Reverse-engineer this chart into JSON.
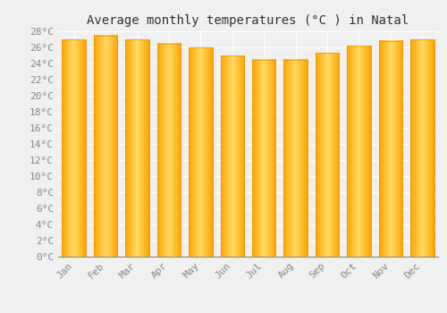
{
  "title": "Average monthly temperatures (°C ) in Natal",
  "months": [
    "Jan",
    "Feb",
    "Mar",
    "Apr",
    "May",
    "Jun",
    "Jul",
    "Aug",
    "Sep",
    "Oct",
    "Nov",
    "Dec"
  ],
  "values": [
    27.0,
    27.5,
    27.0,
    26.5,
    26.0,
    25.0,
    24.5,
    24.5,
    25.3,
    26.2,
    26.8,
    27.0
  ],
  "bar_color_light": "#FFD966",
  "bar_color_dark": "#FFA500",
  "bar_edge_color": "#E89400",
  "ylim": [
    0,
    28
  ],
  "ytick_step": 2,
  "background_color": "#F0F0F0",
  "grid_color": "#FFFFFF",
  "title_fontsize": 10,
  "tick_fontsize": 8,
  "tick_label_color": "#888888",
  "title_color": "#333333"
}
